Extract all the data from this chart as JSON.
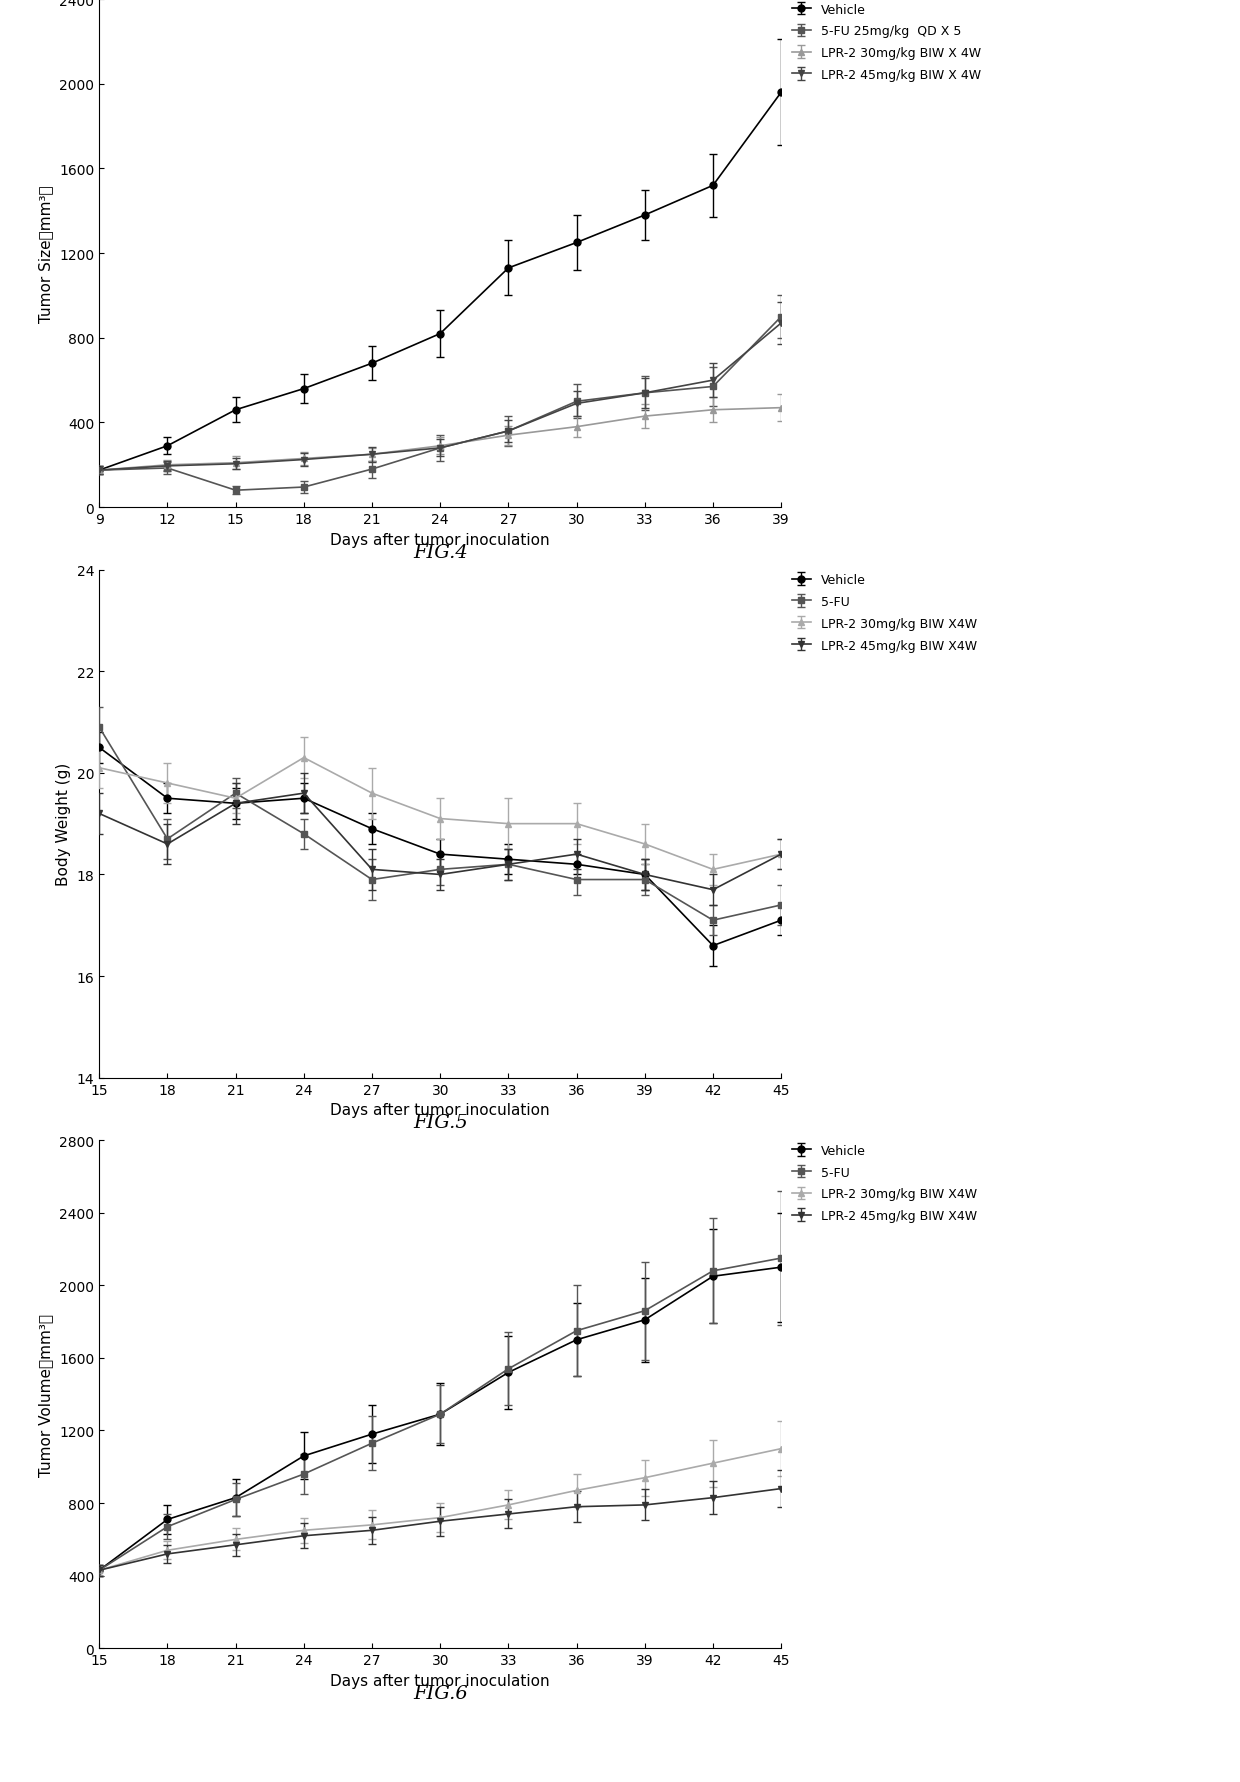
{
  "fig4": {
    "title": "FIG.4",
    "xlabel": "Days after tumor inoculation",
    "ylabel": "Tumor Size（mm³）",
    "ylim": [
      0,
      2400
    ],
    "yticks": [
      0,
      400,
      800,
      1200,
      1600,
      2000,
      2400
    ],
    "xlim": [
      9,
      39
    ],
    "xticks": [
      9,
      12,
      15,
      18,
      21,
      24,
      27,
      30,
      33,
      36,
      39
    ],
    "series": [
      {
        "label": "Vehicle",
        "color": "#000000",
        "marker": "o",
        "x": [
          9,
          12,
          15,
          18,
          21,
          24,
          27,
          30,
          33,
          36,
          39
        ],
        "y": [
          175,
          290,
          460,
          560,
          680,
          820,
          1130,
          1250,
          1380,
          1520,
          1960
        ],
        "yerr": [
          20,
          40,
          60,
          70,
          80,
          110,
          130,
          130,
          120,
          150,
          250
        ]
      },
      {
        "label": "5-FU 25mg/kg  QD X 5",
        "color": "#555555",
        "marker": "s",
        "x": [
          9,
          12,
          15,
          18,
          21,
          24,
          27,
          30,
          33,
          36,
          39
        ],
        "y": [
          175,
          185,
          80,
          95,
          180,
          280,
          360,
          500,
          540,
          570,
          900
        ],
        "yerr": [
          20,
          30,
          20,
          30,
          40,
          60,
          70,
          80,
          80,
          90,
          100
        ]
      },
      {
        "label": "LPR-2 30mg/kg BIW X 4W",
        "color": "#999999",
        "marker": "^",
        "x": [
          9,
          12,
          15,
          18,
          21,
          24,
          27,
          30,
          33,
          36,
          39
        ],
        "y": [
          175,
          200,
          210,
          230,
          250,
          290,
          340,
          380,
          430,
          460,
          470
        ],
        "yerr": [
          20,
          25,
          30,
          30,
          30,
          40,
          45,
          50,
          55,
          60,
          65
        ]
      },
      {
        "label": "LPR-2 45mg/kg BIW X 4W",
        "color": "#444444",
        "marker": "v",
        "x": [
          9,
          12,
          15,
          18,
          21,
          24,
          27,
          30,
          33,
          36,
          39
        ],
        "y": [
          175,
          195,
          205,
          225,
          250,
          280,
          360,
          490,
          540,
          600,
          870
        ],
        "yerr": [
          20,
          25,
          25,
          30,
          35,
          40,
          50,
          60,
          70,
          80,
          100
        ]
      }
    ]
  },
  "fig5": {
    "title": "FIG.5",
    "xlabel": "Days after tumor inoculation",
    "ylabel": "Body Weight (g)",
    "ylim": [
      14,
      24
    ],
    "yticks": [
      14,
      16,
      18,
      20,
      22,
      24
    ],
    "xlim": [
      15,
      45
    ],
    "xticks": [
      15,
      18,
      21,
      24,
      27,
      30,
      33,
      36,
      39,
      42,
      45
    ],
    "series": [
      {
        "label": "Vehicle",
        "color": "#000000",
        "marker": "o",
        "x": [
          15,
          18,
          21,
          24,
          27,
          30,
          33,
          36,
          39,
          42,
          45
        ],
        "y": [
          20.5,
          19.5,
          19.4,
          19.5,
          18.9,
          18.4,
          18.3,
          18.2,
          18.0,
          16.6,
          17.1
        ],
        "yerr": [
          0.3,
          0.3,
          0.3,
          0.3,
          0.3,
          0.3,
          0.3,
          0.2,
          0.3,
          0.4,
          0.3
        ]
      },
      {
        "label": "5-FU",
        "color": "#555555",
        "marker": "s",
        "x": [
          15,
          18,
          21,
          24,
          27,
          30,
          33,
          36,
          39,
          42,
          45
        ],
        "y": [
          20.9,
          18.7,
          19.6,
          18.8,
          17.9,
          18.1,
          18.2,
          17.9,
          17.9,
          17.1,
          17.4
        ],
        "yerr": [
          0.4,
          0.4,
          0.3,
          0.3,
          0.4,
          0.3,
          0.3,
          0.3,
          0.3,
          0.3,
          0.4
        ]
      },
      {
        "label": "LPR-2 30mg/kg BIW X4W",
        "color": "#aaaaaa",
        "marker": "^",
        "x": [
          15,
          18,
          21,
          24,
          27,
          30,
          33,
          36,
          39,
          42,
          45
        ],
        "y": [
          20.1,
          19.8,
          19.5,
          20.3,
          19.6,
          19.1,
          19.0,
          19.0,
          18.6,
          18.1,
          18.4
        ],
        "yerr": [
          0.4,
          0.4,
          0.3,
          0.4,
          0.5,
          0.4,
          0.5,
          0.4,
          0.4,
          0.3,
          0.3
        ]
      },
      {
        "label": "LPR-2 45mg/kg BIW X4W",
        "color": "#333333",
        "marker": "v",
        "x": [
          15,
          18,
          21,
          24,
          27,
          30,
          33,
          36,
          39,
          42,
          45
        ],
        "y": [
          19.2,
          18.6,
          19.4,
          19.6,
          18.1,
          18.0,
          18.2,
          18.4,
          18.0,
          17.7,
          18.4
        ],
        "yerr": [
          0.4,
          0.4,
          0.4,
          0.4,
          0.4,
          0.3,
          0.3,
          0.3,
          0.3,
          0.3,
          0.3
        ]
      }
    ]
  },
  "fig6": {
    "title": "FIG.6",
    "xlabel": "Days after tumor inoculation",
    "ylabel": "Tumor Volume（mm³）",
    "ylim": [
      0,
      2800
    ],
    "yticks": [
      0,
      400,
      800,
      1200,
      1600,
      2000,
      2400,
      2800
    ],
    "xlim": [
      15,
      45
    ],
    "xticks": [
      15,
      18,
      21,
      24,
      27,
      30,
      33,
      36,
      39,
      42,
      45
    ],
    "series": [
      {
        "label": "Vehicle",
        "color": "#000000",
        "marker": "o",
        "x": [
          15,
          18,
          21,
          24,
          27,
          30,
          33,
          36,
          39,
          42,
          45
        ],
        "y": [
          430,
          710,
          830,
          1060,
          1180,
          1290,
          1520,
          1700,
          1810,
          2050,
          2100
        ],
        "yerr": [
          30,
          80,
          100,
          130,
          160,
          170,
          200,
          200,
          230,
          260,
          300
        ]
      },
      {
        "label": "5-FU",
        "color": "#555555",
        "marker": "s",
        "x": [
          15,
          18,
          21,
          24,
          27,
          30,
          33,
          36,
          39,
          42,
          45
        ],
        "y": [
          430,
          670,
          820,
          960,
          1130,
          1290,
          1540,
          1750,
          1860,
          2080,
          2150
        ],
        "yerr": [
          30,
          70,
          90,
          110,
          150,
          160,
          200,
          250,
          270,
          290,
          370
        ]
      },
      {
        "label": "LPR-2 30mg/kg BIW X4W",
        "color": "#aaaaaa",
        "marker": "^",
        "x": [
          15,
          18,
          21,
          24,
          27,
          30,
          33,
          36,
          39,
          42,
          45
        ],
        "y": [
          430,
          540,
          600,
          650,
          680,
          720,
          790,
          870,
          940,
          1020,
          1100
        ],
        "yerr": [
          30,
          50,
          60,
          70,
          80,
          80,
          80,
          90,
          100,
          130,
          150
        ]
      },
      {
        "label": "LPR-2 45mg/kg BIW X4W",
        "color": "#333333",
        "marker": "v",
        "x": [
          15,
          18,
          21,
          24,
          27,
          30,
          33,
          36,
          39,
          42,
          45
        ],
        "y": [
          430,
          520,
          570,
          620,
          650,
          700,
          740,
          780,
          790,
          830,
          880
        ],
        "yerr": [
          30,
          50,
          60,
          70,
          75,
          80,
          80,
          85,
          85,
          90,
          100
        ]
      }
    ]
  },
  "background_color": "#ffffff",
  "line_width": 1.2,
  "markersize": 5,
  "capsize": 3,
  "elinewidth": 1.0,
  "legend_fontsize": 9,
  "axis_label_fontsize": 11,
  "tick_fontsize": 10,
  "fig_label_fontsize": 14
}
